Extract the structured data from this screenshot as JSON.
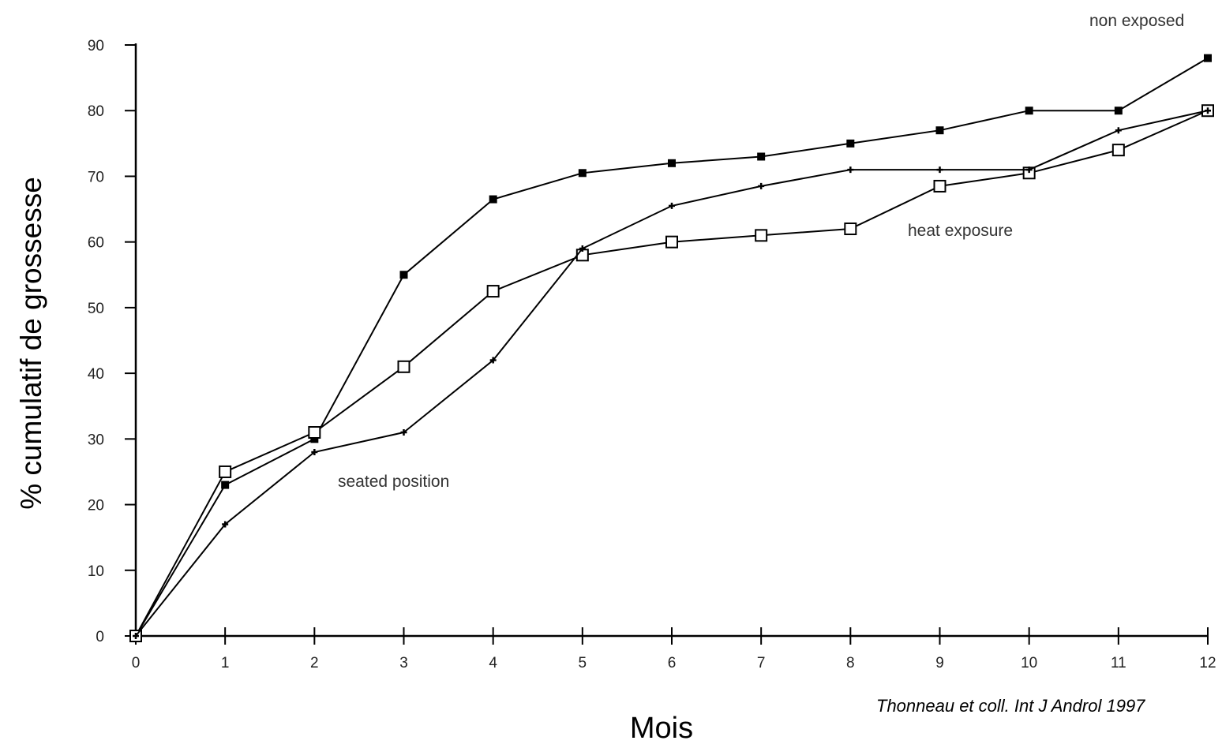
{
  "chart_data": {
    "type": "line",
    "title": "",
    "xlabel": "Mois",
    "ylabel": "% cumulatif de grossesse",
    "xlim": [
      0,
      12
    ],
    "ylim": [
      0,
      90
    ],
    "x_ticks": [
      "0",
      "1",
      "2",
      "3",
      "4",
      "5",
      "6",
      "7",
      "8",
      "9",
      "10",
      "11",
      "12"
    ],
    "y_ticks": [
      "0",
      "10",
      "20",
      "30",
      "40",
      "50",
      "60",
      "70",
      "80",
      "90"
    ],
    "grid": false,
    "x": [
      0,
      1,
      2,
      3,
      4,
      5,
      6,
      7,
      8,
      9,
      10,
      11,
      12
    ],
    "series": [
      {
        "name": "non exposed",
        "marker": "filled-square",
        "values": [
          0,
          23,
          30,
          55,
          66.5,
          70.5,
          72,
          73,
          75,
          77,
          80,
          80,
          88
        ]
      },
      {
        "name": "heat exposure",
        "marker": "open-square",
        "values": [
          0,
          25,
          31,
          41,
          52.5,
          58,
          60,
          61,
          62,
          68.5,
          70.5,
          74,
          80
        ]
      },
      {
        "name": "seated position",
        "marker": "small-plus",
        "values": [
          0,
          17,
          28,
          31,
          42,
          59,
          65.5,
          68.5,
          71,
          71,
          71,
          77,
          80
        ]
      }
    ],
    "annotations": [
      {
        "text": "non exposed",
        "series": 0
      },
      {
        "text": "heat exposure",
        "series": 1
      },
      {
        "text": "seated position",
        "series": 2
      }
    ],
    "source": "Thonneau et coll. Int J Androl 1997"
  }
}
